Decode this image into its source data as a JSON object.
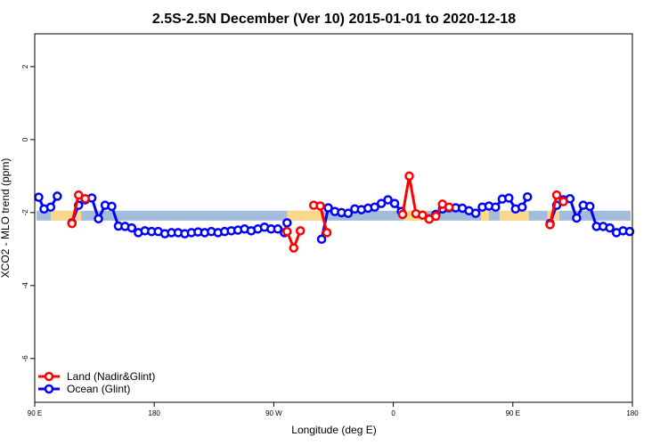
{
  "chart_data": {
    "type": "line",
    "title": "2.5S-2.5N December (Ver 10)   2015-01-01 to 2020-12-18",
    "xlabel": "Longitude (deg E)",
    "ylabel": "XCO2 - MLO trend (ppm)",
    "xlim": [
      90,
      540
    ],
    "ylim": [
      -7.2,
      2.9
    ],
    "x_ticks": [
      {
        "value": 90,
        "label": "90 E"
      },
      {
        "value": 180,
        "label": "180"
      },
      {
        "value": 270,
        "label": "90 W"
      },
      {
        "value": 360,
        "label": "0"
      },
      {
        "value": 450,
        "label": "90 E"
      },
      {
        "value": 540,
        "label": "180"
      }
    ],
    "y_ticks": [
      {
        "value": 2,
        "label": "2"
      },
      {
        "value": 0,
        "label": "0"
      },
      {
        "value": -2,
        "label": "-2"
      },
      {
        "value": -4,
        "label": "-4"
      },
      {
        "value": -6,
        "label": "-6"
      }
    ],
    "band": {
      "y_min": -2.22,
      "y_max": -1.95,
      "ocean_color": "#a4bcdc",
      "land_color": "#fbd98a"
    },
    "land_segments": [
      [
        102,
        125
      ],
      [
        280,
        307
      ],
      [
        368,
        385
      ],
      [
        426,
        432
      ],
      [
        440,
        462
      ],
      [
        476,
        485
      ]
    ],
    "legend": {
      "position": "bottom-left",
      "entries": [
        {
          "label": "Land (Nadir&Glint)",
          "color": "#ff0000"
        },
        {
          "label": "Ocean (Glint)",
          "color": "#0000ff"
        }
      ]
    },
    "series": [
      {
        "name": "Land (Nadir&Glint)",
        "color": "#ff0000",
        "segments": [
          [
            [
              118,
              -2.3
            ],
            [
              123,
              -1.52
            ],
            [
              128,
              -1.62
            ]
          ],
          [
            [
              280,
              -2.52
            ],
            [
              285,
              -2.97
            ],
            [
              290,
              -2.5
            ]
          ],
          [
            [
              300,
              -1.8
            ],
            [
              305,
              -1.82
            ],
            [
              310,
              -2.55
            ]
          ],
          [
            [
              367,
              -2.05
            ],
            [
              372,
              -1.0
            ],
            [
              377,
              -2.03
            ],
            [
              382,
              -2.07
            ],
            [
              387,
              -2.18
            ],
            [
              392,
              -2.1
            ],
            [
              397,
              -1.77
            ],
            [
              402,
              -1.85
            ]
          ],
          [
            [
              478,
              -2.33
            ],
            [
              483,
              -1.52
            ],
            [
              488,
              -1.7
            ]
          ]
        ]
      },
      {
        "name": "Ocean (Glint)",
        "color": "#0000ff",
        "segments": [
          [
            [
              93,
              -1.58
            ],
            [
              97,
              -1.9
            ],
            [
              102,
              -1.85
            ],
            [
              107,
              -1.55
            ]
          ],
          [
            [
              118,
              -2.28
            ],
            [
              123,
              -1.8
            ],
            [
              128,
              -1.65
            ],
            [
              133,
              -1.6
            ],
            [
              138,
              -2.17
            ],
            [
              143,
              -1.8
            ],
            [
              148,
              -1.83
            ],
            [
              153,
              -2.37
            ],
            [
              158,
              -2.38
            ],
            [
              163,
              -2.42
            ],
            [
              168,
              -2.55
            ],
            [
              173,
              -2.5
            ],
            [
              178,
              -2.52
            ],
            [
              183,
              -2.52
            ],
            [
              188,
              -2.58
            ],
            [
              193,
              -2.55
            ],
            [
              198,
              -2.55
            ],
            [
              203,
              -2.58
            ],
            [
              208,
              -2.55
            ],
            [
              213,
              -2.53
            ],
            [
              218,
              -2.55
            ],
            [
              223,
              -2.52
            ],
            [
              228,
              -2.55
            ],
            [
              233,
              -2.52
            ],
            [
              238,
              -2.5
            ],
            [
              243,
              -2.48
            ],
            [
              248,
              -2.45
            ],
            [
              253,
              -2.5
            ],
            [
              258,
              -2.45
            ],
            [
              263,
              -2.4
            ],
            [
              268,
              -2.45
            ],
            [
              273,
              -2.45
            ],
            [
              278,
              -2.55
            ],
            [
              280,
              -2.28
            ]
          ],
          [
            [
              306,
              -2.73
            ],
            [
              311,
              -1.87
            ],
            [
              316,
              -1.97
            ],
            [
              321,
              -2.0
            ],
            [
              326,
              -2.02
            ],
            [
              331,
              -1.9
            ],
            [
              336,
              -1.92
            ],
            [
              341,
              -1.88
            ],
            [
              346,
              -1.85
            ],
            [
              351,
              -1.75
            ],
            [
              356,
              -1.65
            ],
            [
              361,
              -1.75
            ],
            [
              366,
              -1.97
            ]
          ],
          [
            [
              387,
              -2.17
            ],
            [
              392,
              -2.05
            ],
            [
              397,
              -1.9
            ],
            [
              402,
              -1.87
            ],
            [
              407,
              -1.87
            ],
            [
              412,
              -1.88
            ],
            [
              417,
              -1.95
            ],
            [
              422,
              -2.02
            ],
            [
              427,
              -1.85
            ],
            [
              432,
              -1.82
            ],
            [
              437,
              -1.85
            ],
            [
              442,
              -1.63
            ],
            [
              447,
              -1.6
            ],
            [
              452,
              -1.9
            ],
            [
              457,
              -1.85
            ],
            [
              461,
              -1.57
            ]
          ],
          [
            [
              478,
              -2.3
            ],
            [
              483,
              -1.8
            ],
            [
              488,
              -1.65
            ],
            [
              493,
              -1.62
            ],
            [
              498,
              -2.15
            ],
            [
              503,
              -1.8
            ],
            [
              508,
              -1.83
            ],
            [
              513,
              -2.38
            ],
            [
              518,
              -2.38
            ],
            [
              523,
              -2.42
            ],
            [
              528,
              -2.55
            ],
            [
              533,
              -2.5
            ],
            [
              538,
              -2.52
            ]
          ]
        ]
      }
    ]
  }
}
